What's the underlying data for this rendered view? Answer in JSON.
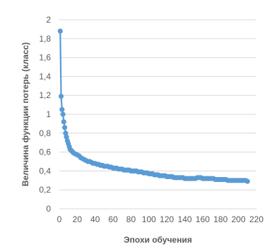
{
  "chart_data": {
    "type": "line",
    "xlabel": "Эпохи обучения",
    "ylabel": "Величина функции потерь (класс)",
    "xlim": [
      0,
      220
    ],
    "ylim": [
      0,
      2
    ],
    "x_ticks": [
      "0",
      "20",
      "40",
      "60",
      "80",
      "100",
      "120",
      "140",
      "160",
      "180",
      "200",
      "220"
    ],
    "y_ticks": [
      "0",
      "0,2",
      "0,4",
      "0,6",
      "0,8",
      "1",
      "1,2",
      "1,4",
      "1,6",
      "1,8",
      "2"
    ],
    "grid": "horizontal",
    "legend": "none",
    "color": "#5b9bd5",
    "markers": "circle",
    "series": [
      {
        "x": [
          1,
          2,
          3,
          4,
          5,
          6,
          7,
          8,
          9,
          10,
          11,
          12,
          13,
          14,
          15,
          16,
          18,
          20,
          22,
          24,
          26,
          28,
          30,
          32,
          34,
          36,
          38,
          40,
          42,
          44,
          46,
          48,
          50,
          52,
          54,
          56,
          58,
          60,
          62,
          64,
          66,
          68,
          70,
          72,
          74,
          76,
          78,
          80,
          82,
          84,
          86,
          88,
          90,
          92,
          94,
          96,
          98,
          100,
          102,
          104,
          106,
          108,
          110,
          112,
          114,
          116,
          118,
          120,
          122,
          124,
          126,
          128,
          130,
          132,
          134,
          136,
          138,
          140,
          142,
          144,
          146,
          148,
          150,
          152,
          154,
          156,
          158,
          160,
          162,
          164,
          166,
          168,
          170,
          172,
          174,
          176,
          178,
          180,
          182,
          184,
          186,
          188,
          190,
          192,
          194,
          196,
          198,
          200,
          202,
          204,
          206,
          208,
          210
        ],
        "y": [
          1.88,
          1.19,
          1.05,
          1.0,
          0.92,
          0.86,
          0.8,
          0.76,
          0.72,
          0.69,
          0.66,
          0.63,
          0.62,
          0.61,
          0.6,
          0.59,
          0.58,
          0.57,
          0.56,
          0.54,
          0.53,
          0.52,
          0.51,
          0.5,
          0.5,
          0.49,
          0.48,
          0.48,
          0.47,
          0.47,
          0.46,
          0.46,
          0.45,
          0.45,
          0.45,
          0.44,
          0.44,
          0.43,
          0.43,
          0.43,
          0.42,
          0.42,
          0.42,
          0.41,
          0.41,
          0.41,
          0.41,
          0.4,
          0.4,
          0.4,
          0.4,
          0.39,
          0.39,
          0.39,
          0.38,
          0.38,
          0.38,
          0.37,
          0.37,
          0.37,
          0.36,
          0.36,
          0.36,
          0.35,
          0.35,
          0.35,
          0.35,
          0.34,
          0.34,
          0.34,
          0.34,
          0.33,
          0.33,
          0.33,
          0.33,
          0.33,
          0.33,
          0.32,
          0.32,
          0.32,
          0.32,
          0.32,
          0.32,
          0.32,
          0.33,
          0.33,
          0.33,
          0.32,
          0.32,
          0.32,
          0.32,
          0.32,
          0.32,
          0.32,
          0.31,
          0.31,
          0.31,
          0.31,
          0.31,
          0.31,
          0.31,
          0.3,
          0.3,
          0.3,
          0.3,
          0.3,
          0.3,
          0.3,
          0.3,
          0.3,
          0.3,
          0.3,
          0.29
        ]
      }
    ]
  }
}
